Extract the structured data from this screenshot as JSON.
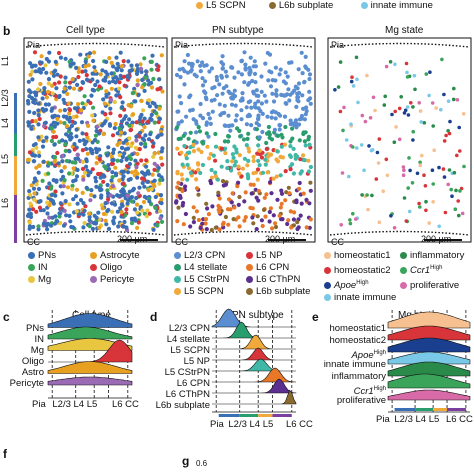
{
  "top_legend": [
    {
      "label": "L5 SCPN",
      "color": "#f2a93b"
    },
    {
      "label": "L6b subplate",
      "color": "#8a6a2f"
    },
    {
      "label": "innate immune",
      "color": "#7ac8e8"
    }
  ],
  "panel_b": {
    "letter": "b",
    "titles": [
      "Cell type",
      "PN subtype",
      "Mg state"
    ],
    "pia": "Pia",
    "cc": "CC",
    "scale": "200 µm",
    "layers": [
      {
        "label": "L1",
        "color": "#3a6fb5"
      },
      {
        "label": "L2/3",
        "color": "#3a6fb5"
      },
      {
        "label": "L4",
        "color": "#2a9d6f"
      },
      {
        "label": "L5",
        "color": "#f2a93b"
      },
      {
        "label": "L6",
        "color": "#7b3fa0"
      }
    ],
    "legend_cell": [
      {
        "label": "PNs",
        "color": "#3a6fb5"
      },
      {
        "label": "Astrocyte",
        "color": "#e8a020"
      },
      {
        "label": "IN",
        "color": "#3aa55a"
      },
      {
        "label": "Oligo",
        "color": "#d8353a"
      },
      {
        "label": "Mg",
        "color": "#e8c640"
      },
      {
        "label": "Pericyte",
        "color": "#9a6ab5"
      }
    ],
    "legend_pn": [
      {
        "label": "L2/3 CPN",
        "color": "#5a8ed0"
      },
      {
        "label": "L5 NP",
        "color": "#d8353a"
      },
      {
        "label": "L4 stellate",
        "color": "#2a9d6f"
      },
      {
        "label": "L6 CPN",
        "color": "#e87828"
      },
      {
        "label": "L5 CStrPN",
        "color": "#3fb8a8"
      },
      {
        "label": "L6 CThPN",
        "color": "#5a2f8f"
      },
      {
        "label": "L5 SCPN",
        "color": "#f2a93b"
      },
      {
        "label": "L6b subplate",
        "color": "#8a6a2f"
      }
    ],
    "legend_mg": [
      {
        "label": "homeostatic1",
        "color": "#f7c090"
      },
      {
        "label": "inflammatory",
        "color": "#2a8a4a"
      },
      {
        "label": "homeostatic2",
        "color": "#d8353a"
      },
      {
        "label": "Ccr1",
        "sup": "High",
        "color": "#3aa55a"
      },
      {
        "label": "Apoe",
        "sup": "High",
        "color": "#1a3f8f"
      },
      {
        "label": "proliferative",
        "color": "#d86aa8"
      },
      {
        "label": "innate immune",
        "color": "#7ac8e8"
      }
    ]
  },
  "panel_c": {
    "letter": "c",
    "title": "Cell type",
    "rows": [
      "PNs",
      "IN",
      "Mg",
      "Oligo",
      "Astro",
      "Pericyte"
    ],
    "colors": [
      "#3a6fb5",
      "#3aa55a",
      "#e8c640",
      "#d8353a",
      "#e8a020",
      "#9a6ab5"
    ],
    "x_labels": [
      "Pia",
      "L2/3",
      "L4",
      "L5",
      "L6",
      "CC"
    ]
  },
  "panel_d": {
    "letter": "d",
    "title": "PN subtype",
    "rows": [
      "L2/3 CPN",
      "L4 stellate",
      "L5 SCPN",
      "L5 NP",
      "L5 CStrPN",
      "L6 CPN",
      "L6 CThPN",
      "L6b subplate"
    ],
    "colors": [
      "#5a8ed0",
      "#2a9d6f",
      "#f2a93b",
      "#d8353a",
      "#3fb8a8",
      "#e87828",
      "#5a2f8f",
      "#8a6a2f"
    ],
    "x_labels": [
      "Pia",
      "L2/3",
      "L4",
      "L5",
      "L6",
      "CC"
    ]
  },
  "panel_e": {
    "letter": "e",
    "title": "Mg state",
    "rows": [
      {
        "label": "homeostatic1"
      },
      {
        "label": "homeostatic2"
      },
      {
        "label": "Apoe",
        "sup": "High"
      },
      {
        "label": "innate immune"
      },
      {
        "label": "inflammatory"
      },
      {
        "label": "Ccr1",
        "sup": "High"
      },
      {
        "label": "proliferative"
      }
    ],
    "colors": [
      "#f7c090",
      "#d8353a",
      "#1a3f8f",
      "#7ac8e8",
      "#2a8a4a",
      "#3aa55a",
      "#d86aa8"
    ],
    "x_labels": [
      "Pia",
      "L2/3",
      "L4",
      "L5",
      "L6",
      "CC"
    ]
  },
  "panel_f": {
    "letter": "f"
  },
  "panel_g": {
    "letter": "g",
    "tick": "0.6"
  }
}
